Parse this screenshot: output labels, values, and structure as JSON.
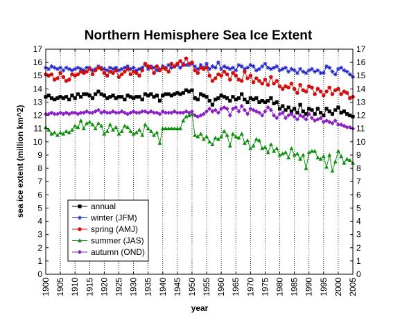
{
  "chart_data": {
    "type": "line",
    "title": "Northern Hemisphere Sea Ice Extent",
    "xlabel": "year",
    "ylabel": "sea ice extent (million km^2)",
    "xlim": [
      1900,
      2005
    ],
    "ylim": [
      0,
      17
    ],
    "x_ticks": [
      1900,
      1905,
      1910,
      1915,
      1920,
      1925,
      1930,
      1935,
      1940,
      1945,
      1950,
      1955,
      1960,
      1965,
      1970,
      1975,
      1980,
      1985,
      1990,
      1995,
      2000,
      2005
    ],
    "y_ticks": [
      0,
      1,
      2,
      3,
      4,
      5,
      6,
      7,
      8,
      9,
      10,
      11,
      12,
      13,
      14,
      15,
      16,
      17
    ],
    "grid": "vertical dotted at x ticks",
    "legend_position": "lower-left",
    "x": [
      1900,
      1901,
      1902,
      1903,
      1904,
      1905,
      1906,
      1907,
      1908,
      1909,
      1910,
      1911,
      1912,
      1913,
      1914,
      1915,
      1916,
      1917,
      1918,
      1919,
      1920,
      1921,
      1922,
      1923,
      1924,
      1925,
      1926,
      1927,
      1928,
      1929,
      1930,
      1931,
      1932,
      1933,
      1934,
      1935,
      1936,
      1937,
      1938,
      1939,
      1940,
      1941,
      1942,
      1943,
      1944,
      1945,
      1946,
      1947,
      1948,
      1949,
      1950,
      1951,
      1952,
      1953,
      1954,
      1955,
      1956,
      1957,
      1958,
      1959,
      1960,
      1961,
      1962,
      1963,
      1964,
      1965,
      1966,
      1967,
      1968,
      1969,
      1970,
      1971,
      1972,
      1973,
      1974,
      1975,
      1976,
      1977,
      1978,
      1979,
      1980,
      1981,
      1982,
      1983,
      1984,
      1985,
      1986,
      1987,
      1988,
      1989,
      1990,
      1991,
      1992,
      1993,
      1994,
      1995,
      1996,
      1997,
      1998,
      1999,
      2000,
      2001,
      2002,
      2003,
      2004,
      2005
    ],
    "series": [
      {
        "name": "annual",
        "color": "#000000",
        "marker": "square",
        "values": [
          13.4,
          13.5,
          13.3,
          13.2,
          13.3,
          13.4,
          13.3,
          13.4,
          13.2,
          13.5,
          13.3,
          13.6,
          13.4,
          13.6,
          13.6,
          13.5,
          13.3,
          13.6,
          13.8,
          13.6,
          13.5,
          13.3,
          13.4,
          13.5,
          13.3,
          13.4,
          13.4,
          13.2,
          13.5,
          13.4,
          13.3,
          13.4,
          13.4,
          13.2,
          13.6,
          13.5,
          13.6,
          13.4,
          13.5,
          13.1,
          13.5,
          13.6,
          13.6,
          13.5,
          13.6,
          13.7,
          13.6,
          13.7,
          13.9,
          13.8,
          13.9,
          13.3,
          13.2,
          13.6,
          13.5,
          13.4,
          13.1,
          12.8,
          13.2,
          13.3,
          13.5,
          13.4,
          13.3,
          13.1,
          13.4,
          13.2,
          13.3,
          13.6,
          13.2,
          13.0,
          13.3,
          13.2,
          13.3,
          13.0,
          13.1,
          13.0,
          13.1,
          13.3,
          12.9,
          13.0,
          12.5,
          12.7,
          12.4,
          12.6,
          12.3,
          12.5,
          12.2,
          12.8,
          12.3,
          12.1,
          12.5,
          12.4,
          12.1,
          12.5,
          12.2,
          12.0,
          12.5,
          12.3,
          12.1,
          12.4,
          12.6,
          12.2,
          12.3,
          12.1,
          12.0,
          11.9
        ]
      },
      {
        "name": "winter (JFM)",
        "color": "#1f24c9",
        "marker": "star",
        "values": [
          15.6,
          15.5,
          15.7,
          15.6,
          15.5,
          15.6,
          15.4,
          15.6,
          15.5,
          15.4,
          15.5,
          15.6,
          15.5,
          15.4,
          15.6,
          15.6,
          15.4,
          15.5,
          15.7,
          15.6,
          15.5,
          15.4,
          15.6,
          15.5,
          15.6,
          15.4,
          15.5,
          15.6,
          15.7,
          15.5,
          15.6,
          15.4,
          15.5,
          15.6,
          15.8,
          15.5,
          15.7,
          15.6,
          15.4,
          15.5,
          15.7,
          15.6,
          15.8,
          15.6,
          15.7,
          15.8,
          15.6,
          15.9,
          15.8,
          15.8,
          15.9,
          15.7,
          15.5,
          15.8,
          15.6,
          15.9,
          15.5,
          15.7,
          15.6,
          16.0,
          15.5,
          15.7,
          15.6,
          15.5,
          15.6,
          15.4,
          15.8,
          15.7,
          15.5,
          15.6,
          15.8,
          15.7,
          15.4,
          15.5,
          15.7,
          15.9,
          15.6,
          15.5,
          15.6,
          15.7,
          15.4,
          15.5,
          15.6,
          15.3,
          15.5,
          15.4,
          15.2,
          15.5,
          15.3,
          15.2,
          15.4,
          15.5,
          15.3,
          15.4,
          15.2,
          15.2,
          15.7,
          15.6,
          15.3,
          15.1,
          15.5,
          15.6,
          15.4,
          15.3,
          15.1,
          14.9
        ]
      },
      {
        "name": "spring (AMJ)",
        "color": "#d01010",
        "marker": "circle",
        "values": [
          15.1,
          15.0,
          15.1,
          14.7,
          14.8,
          15.2,
          14.9,
          14.6,
          14.7,
          15.1,
          15.0,
          15.1,
          15.3,
          15.2,
          15.3,
          15.5,
          15.1,
          15.4,
          15.6,
          15.5,
          15.2,
          15.0,
          15.3,
          15.2,
          15.4,
          14.9,
          15.1,
          15.3,
          15.5,
          15.1,
          15.3,
          15.2,
          15.0,
          15.4,
          15.9,
          15.7,
          15.6,
          15.2,
          15.7,
          15.4,
          15.6,
          15.5,
          15.3,
          15.9,
          15.7,
          15.9,
          16.1,
          15.8,
          16.3,
          15.9,
          16.0,
          15.4,
          15.2,
          15.6,
          15.5,
          15.6,
          15.0,
          14.6,
          14.8,
          15.1,
          15.0,
          15.3,
          15.1,
          14.7,
          15.2,
          15.0,
          14.7,
          14.6,
          15.3,
          14.8,
          15.0,
          14.5,
          14.8,
          14.6,
          14.4,
          14.7,
          14.3,
          14.9,
          14.4,
          14.6,
          14.2,
          14.0,
          14.2,
          14.1,
          14.4,
          14.0,
          13.7,
          14.3,
          13.9,
          13.8,
          14.2,
          14.1,
          13.6,
          14.0,
          13.8,
          13.5,
          13.8,
          14.1,
          13.6,
          13.9,
          14.0,
          13.6,
          13.8,
          13.7,
          13.3,
          13.4
        ]
      },
      {
        "name": "summer (JAS)",
        "color": "#0d8f0d",
        "marker": "triangle",
        "values": [
          11.1,
          10.9,
          10.6,
          10.7,
          10.5,
          10.7,
          10.6,
          10.8,
          10.7,
          10.9,
          11.2,
          11.1,
          11.6,
          11.0,
          11.4,
          11.5,
          11.3,
          11.0,
          11.4,
          11.2,
          10.6,
          10.8,
          11.3,
          10.9,
          11.1,
          10.6,
          10.8,
          11.2,
          11.1,
          10.8,
          10.6,
          10.7,
          10.9,
          10.5,
          11.3,
          11.0,
          10.8,
          10.5,
          10.7,
          9.9,
          11.0,
          11.0,
          11.0,
          11.0,
          11.0,
          11.0,
          11.0,
          11.6,
          11.9,
          12.0,
          12.1,
          10.5,
          10.4,
          10.6,
          10.2,
          10.4,
          10.0,
          9.8,
          10.3,
          10.2,
          10.4,
          10.8,
          10.5,
          9.7,
          10.6,
          10.4,
          10.3,
          10.6,
          9.9,
          10.1,
          9.5,
          9.7,
          10.2,
          10.1,
          9.5,
          9.6,
          9.2,
          9.8,
          9.3,
          9.5,
          9.0,
          9.1,
          9.2,
          8.8,
          9.5,
          9.0,
          9.1,
          8.7,
          9.0,
          8.0,
          9.2,
          9.3,
          9.3,
          8.8,
          8.7,
          8.9,
          8.1,
          9.0,
          7.8,
          8.5,
          9.3,
          8.9,
          8.4,
          8.7,
          8.6,
          8.4
        ]
      },
      {
        "name": "autumn (OND)",
        "color": "#8a1fc4",
        "marker": "diamond",
        "values": [
          12.1,
          12.1,
          12.2,
          12.1,
          12.1,
          12.2,
          12.1,
          12.2,
          12.1,
          12.2,
          12.2,
          12.1,
          12.2,
          12.2,
          12.3,
          12.2,
          12.2,
          12.3,
          12.4,
          12.2,
          12.3,
          12.2,
          12.2,
          12.3,
          12.2,
          12.2,
          12.3,
          12.2,
          12.1,
          12.2,
          12.3,
          12.2,
          12.2,
          12.3,
          12.3,
          12.2,
          12.3,
          12.2,
          12.2,
          12.1,
          12.3,
          12.2,
          12.2,
          12.2,
          12.3,
          12.2,
          12.2,
          12.2,
          12.3,
          12.2,
          12.3,
          12.0,
          11.9,
          12.0,
          12.1,
          12.3,
          12.5,
          12.3,
          12.4,
          12.2,
          12.5,
          12.6,
          12.5,
          12.0,
          12.5,
          12.6,
          12.3,
          12.7,
          12.4,
          12.1,
          12.5,
          12.4,
          12.3,
          12.2,
          12.0,
          12.3,
          12.6,
          12.4,
          12.0,
          11.8,
          12.1,
          12.2,
          11.8,
          12.0,
          12.1,
          11.9,
          11.7,
          12.0,
          11.9,
          11.7,
          12.1,
          11.8,
          11.6,
          11.7,
          11.8,
          11.5,
          11.6,
          11.5,
          11.4,
          11.6,
          11.3,
          11.3,
          11.2,
          11.1,
          11.1,
          11.0
        ]
      }
    ]
  }
}
